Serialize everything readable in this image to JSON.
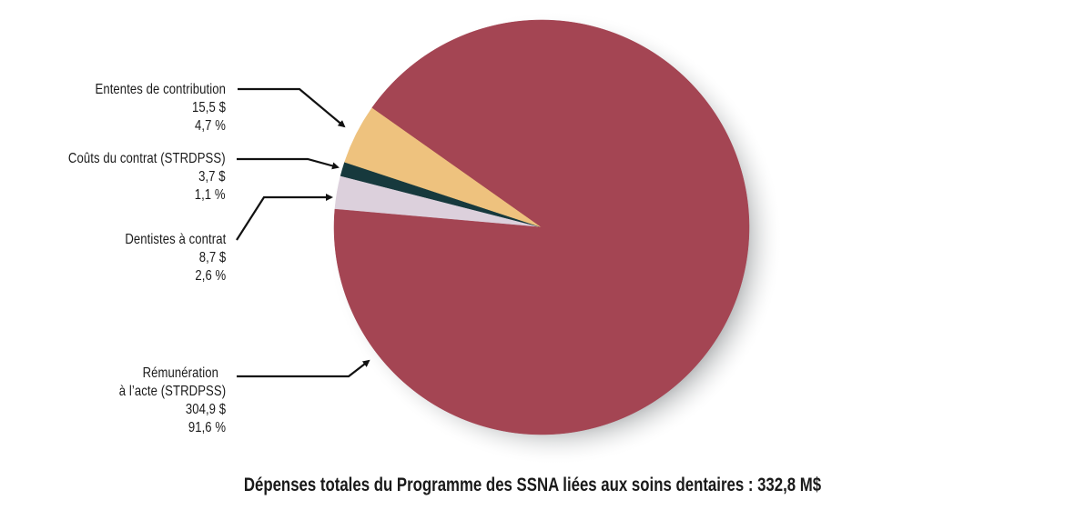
{
  "chart_data": {
    "type": "pie",
    "title": "Dépenses totales du Programme des SSNA liées aux soins dentaires : 332,8 M$",
    "total": 332.8,
    "unit": "M$",
    "slices": [
      {
        "label": "Rémunération à l’acte (STRDPSS)",
        "label_lines": [
          "Rémunération",
          "à l’acte (STRDPSS)"
        ],
        "value": 304.9,
        "value_text": "304,9 $",
        "percent": 91.6,
        "percent_text": "91,6 %",
        "color": "#a44553"
      },
      {
        "label": "Ententes de contribution",
        "label_lines": [
          "Ententes de contribution"
        ],
        "value": 15.5,
        "value_text": "15,5 $",
        "percent": 4.7,
        "percent_text": "4,7 %",
        "color": "#eec27e"
      },
      {
        "label": "Coûts du contrat (STRDPSS)",
        "label_lines": [
          "Coûts du contrat (STRDPSS)"
        ],
        "value": 3.7,
        "value_text": "3,7 $",
        "percent": 1.1,
        "percent_text": "1,1 %",
        "color": "#17393d"
      },
      {
        "label": "Dentistes à contrat",
        "label_lines": [
          "Dentistes à contrat"
        ],
        "value": 8.7,
        "value_text": "8,7 $",
        "percent": 2.6,
        "percent_text": "2,6 %",
        "color": "#dcd0dc"
      }
    ],
    "legend_position": "left-callouts"
  },
  "labels": {
    "ententes": {
      "name": "Ententes de contribution",
      "value": "15,5 $",
      "pct": "4,7 %"
    },
    "couts": {
      "name": "Coûts du contrat (STRDPSS)",
      "value": "3,7 $",
      "pct": "1,1 %"
    },
    "dentistes": {
      "name": "Dentistes à contrat",
      "value": "8,7 $",
      "pct": "2,6 %"
    },
    "remuneration": {
      "name1": "Rémunération",
      "name2": "à l’acte (STRDPSS)",
      "value": "304,9 $",
      "pct": "91,6 %"
    }
  },
  "title": "Dépenses totales du Programme des SSNA liées aux soins dentaires : 332,8 M$"
}
